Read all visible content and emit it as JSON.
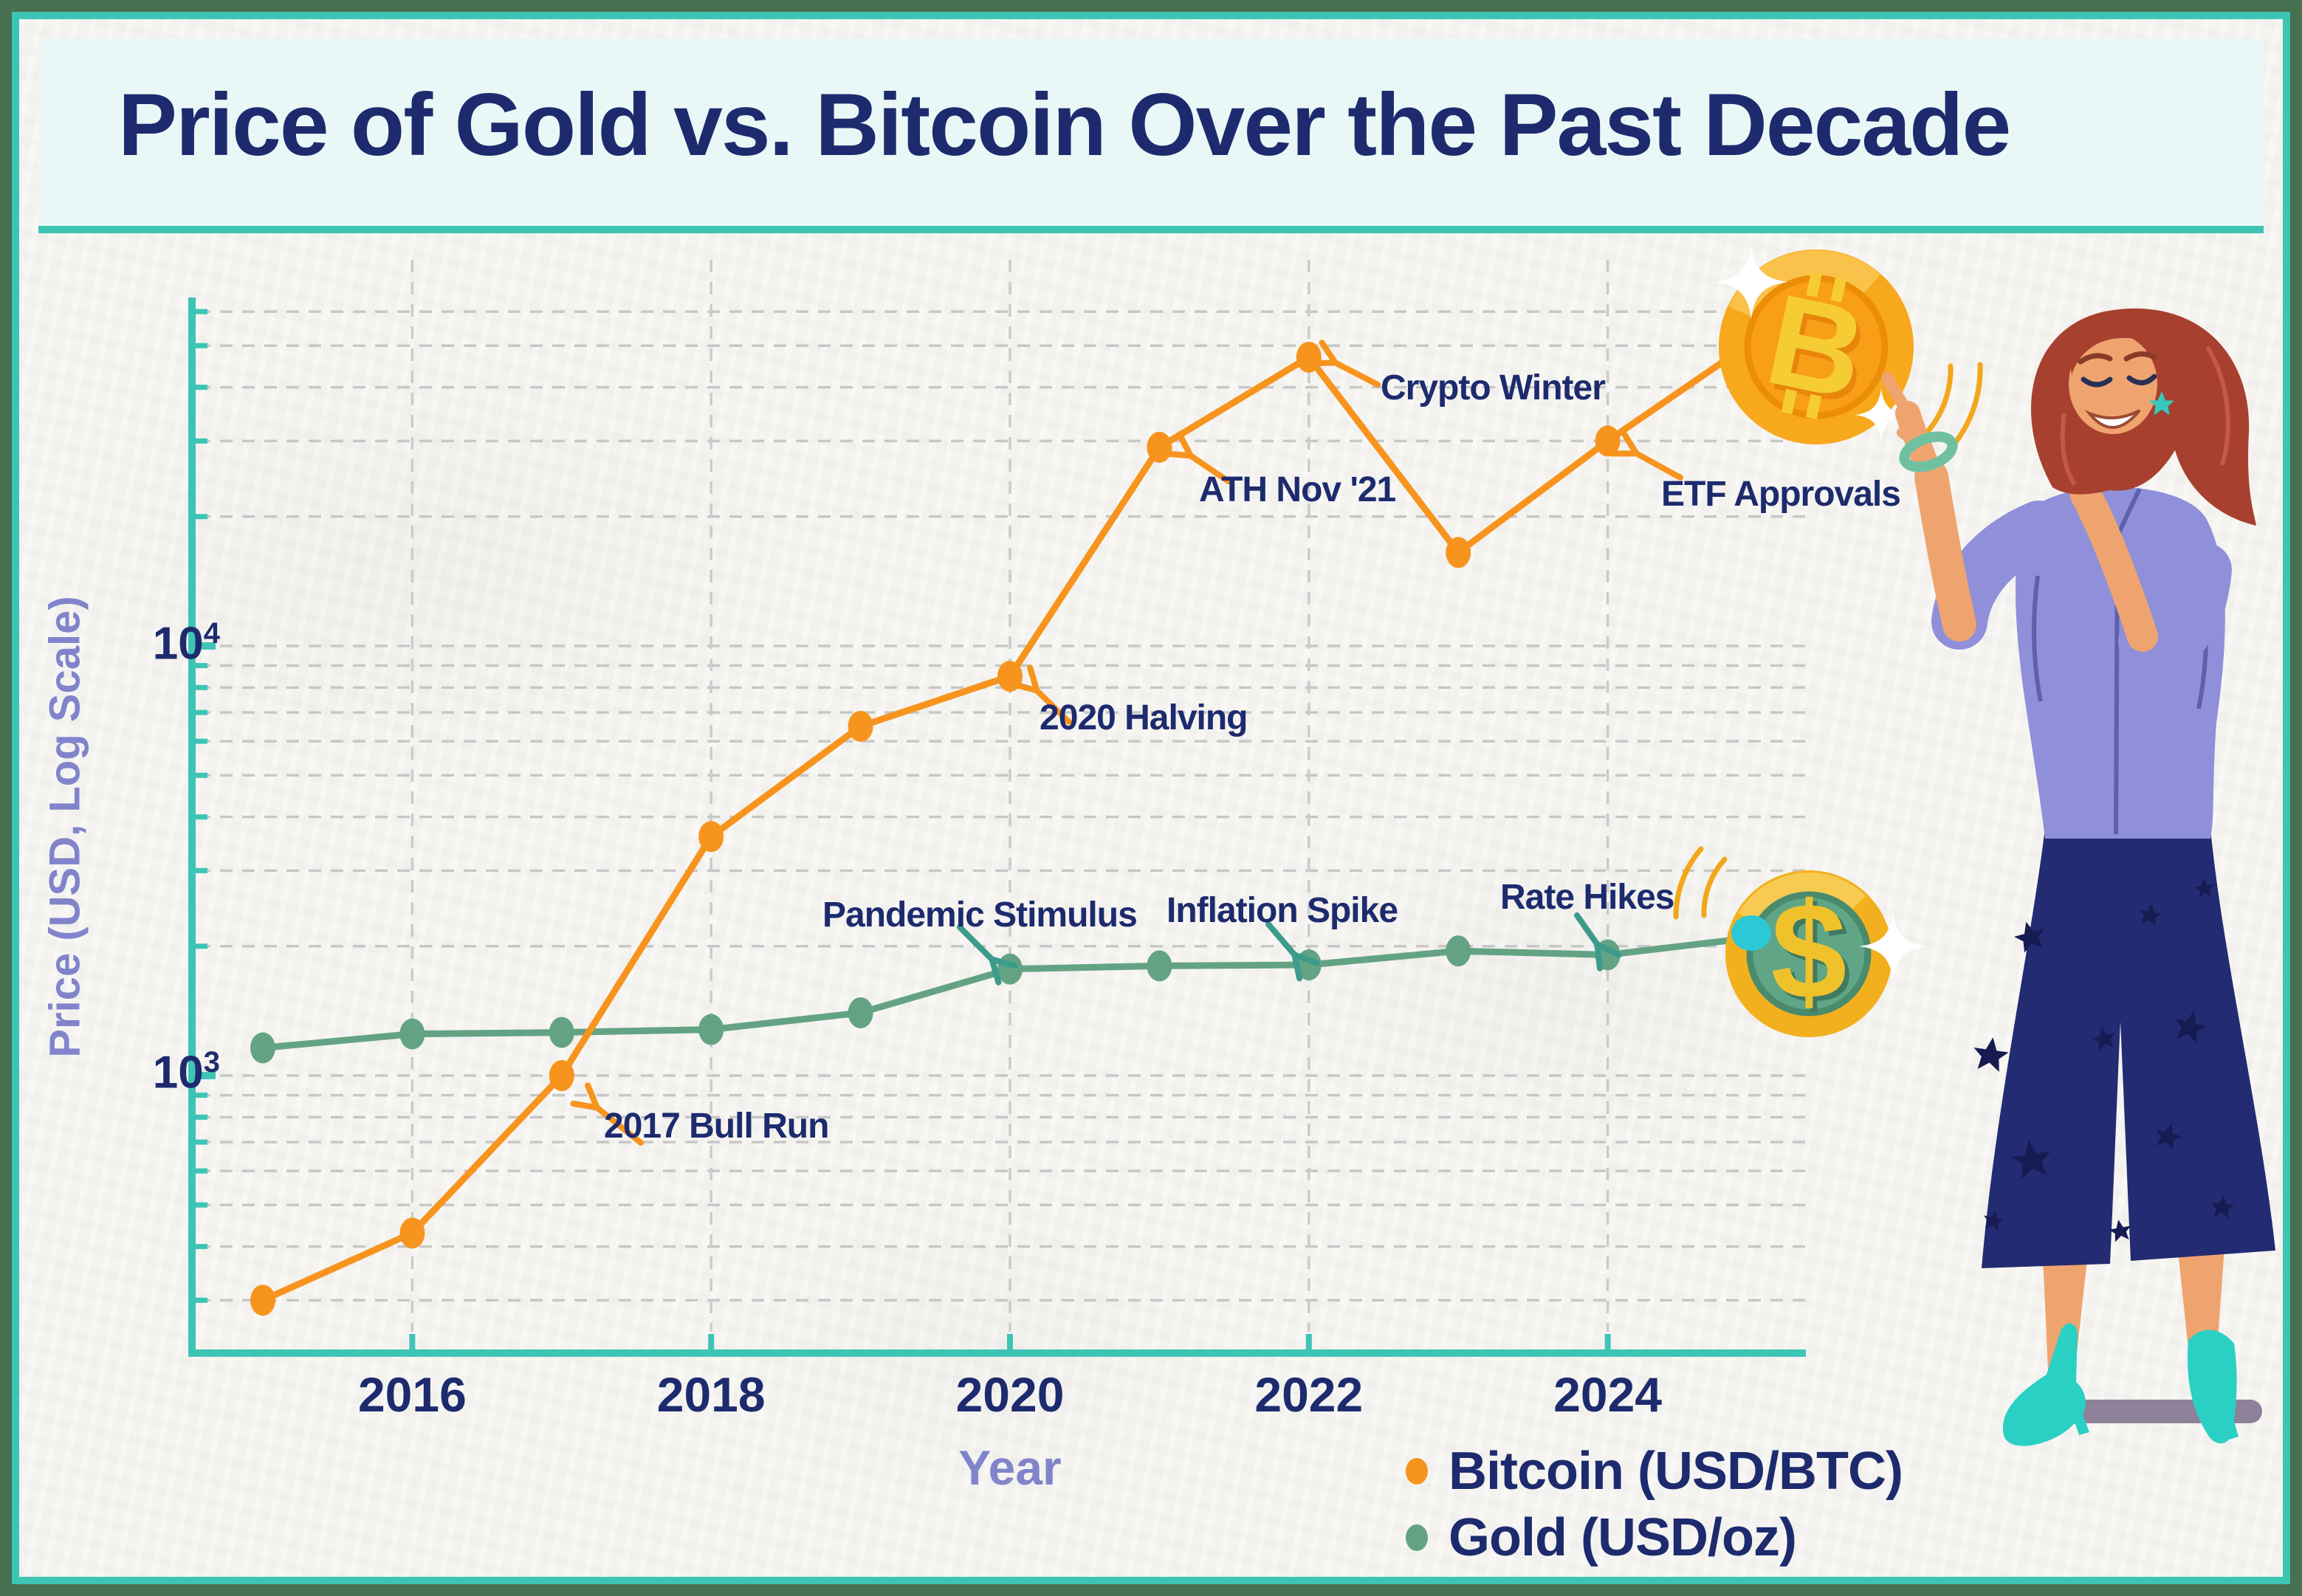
{
  "title": "Price of Gold vs. Bitcoin Over the Past Decade",
  "axes": {
    "x_label": "Year",
    "y_label": "Price (USD, Log Scale)",
    "x_ticks": [
      "2016",
      "2018",
      "2020",
      "2022",
      "2024"
    ],
    "y_ticks": [
      {
        "base": "10",
        "exp": "4"
      },
      {
        "base": "10",
        "exp": "3"
      }
    ]
  },
  "legend": [
    {
      "label": "Bitcoin (USD/BTC)",
      "color": "#F7941E"
    },
    {
      "label": "Gold (USD/oz)",
      "color": "#63A383"
    }
  ],
  "colors": {
    "accent_teal": "#3EC4B5",
    "frame_green": "#46704F",
    "navy_text": "#1D2B6E",
    "purple_label": "#8184CB",
    "bitcoin_orange": "#F7941E",
    "gold_green": "#63A383",
    "highlight_cyan": "#2BC9D6",
    "grid_gray": "#C7C7C7"
  },
  "icons": {
    "bitcoin_coin": "gold coin with B currency symbol",
    "dollar_coin": "gold coin with green center and $ symbol",
    "sparkle": "four-point star",
    "bitcoin_symbol": "B",
    "dollar_symbol": "$"
  },
  "chart_data": {
    "type": "line",
    "title": "Price of Gold vs. Bitcoin Over the Past Decade",
    "xlabel": "Year",
    "ylabel": "Price (USD, Log Scale)",
    "yscale": "log",
    "ylim": [
      280,
      65000
    ],
    "grid": true,
    "legend_position": "bottom-right",
    "x": [
      2015,
      2016,
      2017,
      2018,
      2019,
      2020,
      2021,
      2022,
      2023,
      2024,
      2025
    ],
    "x_tick_years": [
      2016,
      2018,
      2020,
      2022,
      2024
    ],
    "y_tick_values": [
      10000,
      1000
    ],
    "series": [
      {
        "name": "Bitcoin (USD/BTC)",
        "color": "#F7941E",
        "values": [
          300,
          430,
          1000,
          3600,
          6500,
          8500,
          29000,
          47000,
          16500,
          30000,
          52000
        ]
      },
      {
        "name": "Gold (USD/oz)",
        "color": "#63A383",
        "last_point_color": "#2BC9D6",
        "values": [
          1160,
          1250,
          1260,
          1280,
          1400,
          1770,
          1800,
          1810,
          1950,
          1910,
          2100
        ]
      }
    ],
    "annotations": [
      {
        "label": "2017 Bull Run",
        "series": "Bitcoin (USD/BTC)",
        "year": 2017,
        "value": 1000
      },
      {
        "label": "2020 Halving",
        "series": "Bitcoin (USD/BTC)",
        "year": 2020,
        "value": 8500
      },
      {
        "label": "ATH Nov '21",
        "series": "Bitcoin (USD/BTC)",
        "year": 2021,
        "value": 29000
      },
      {
        "label": "Crypto Winter",
        "series": "Bitcoin (USD/BTC)",
        "year": 2022,
        "value": 47000
      },
      {
        "label": "ETF Approvals",
        "series": "Bitcoin (USD/BTC)",
        "year": 2024,
        "value": 30000
      },
      {
        "label": "Pandemic Stimulus",
        "series": "Gold (USD/oz)",
        "year": 2020,
        "value": 1770
      },
      {
        "label": "Inflation Spike",
        "series": "Gold (USD/oz)",
        "year": 2022,
        "value": 1810
      },
      {
        "label": "Rate Hikes",
        "series": "Gold (USD/oz)",
        "year": 2024,
        "value": 1910
      }
    ]
  }
}
